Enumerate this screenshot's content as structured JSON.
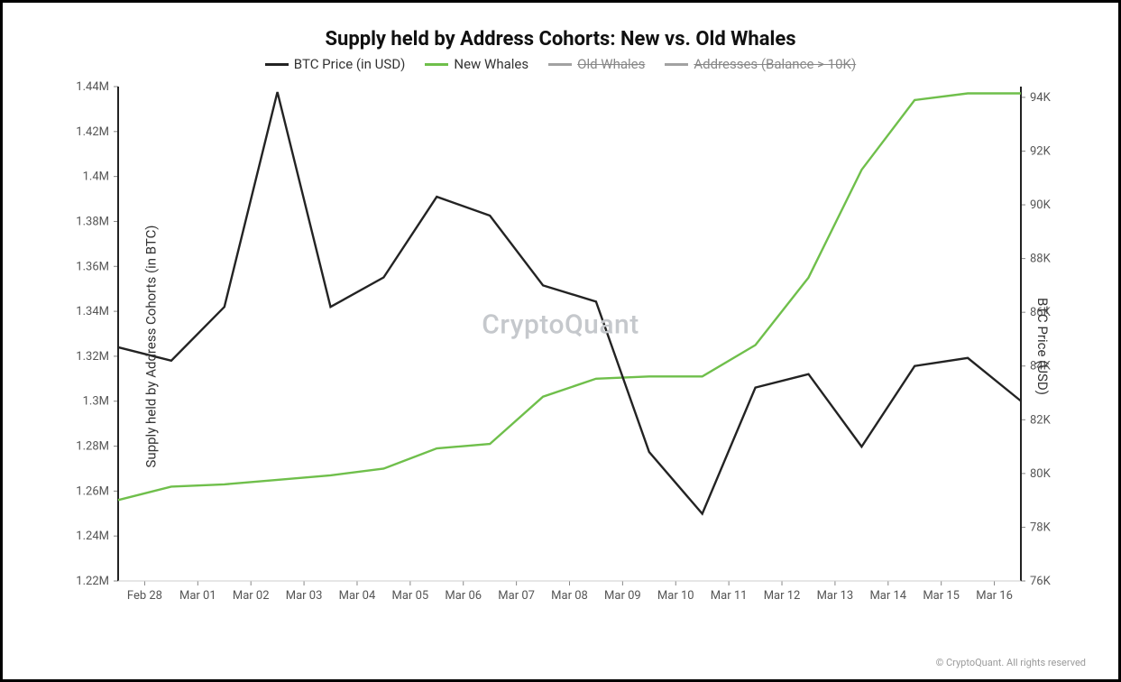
{
  "chart": {
    "type": "line",
    "title": "Supply held by Address Cohorts: New vs. Old Whales",
    "title_fontsize": 22,
    "watermark": "CryptoQuant",
    "copyright": "© CryptoQuant. All rights reserved",
    "background_color": "#ffffff",
    "frame_border_color": "#000000",
    "line_width": 2.4,
    "legend": [
      {
        "label": "BTC Price (in USD)",
        "color": "#232323",
        "active": true
      },
      {
        "label": "New Whales",
        "color": "#6fbf4b",
        "active": true
      },
      {
        "label": "Old Whales",
        "color": "#555555",
        "active": false
      },
      {
        "label": "Addresses (Balance > 10K)",
        "color": "#555555",
        "active": false
      }
    ],
    "x": {
      "labels": [
        "Feb 28",
        "Mar 01",
        "Mar 02",
        "Mar 03",
        "Mar 04",
        "Mar 05",
        "Mar 06",
        "Mar 07",
        "Mar 08",
        "Mar 09",
        "Mar 10",
        "Mar 11",
        "Mar 12",
        "Mar 13",
        "Mar 14",
        "Mar 15",
        "Mar 16"
      ],
      "tick_fontsize": 13,
      "tick_color": "#555555"
    },
    "y_left": {
      "title": "Supply held by Address Cohorts (in BTC)",
      "min": 1.22,
      "max": 1.44,
      "ticks": [
        1.22,
        1.24,
        1.26,
        1.28,
        1.3,
        1.32,
        1.34,
        1.36,
        1.38,
        1.4,
        1.42,
        1.44
      ],
      "tick_labels": [
        "1.22M",
        "1.24M",
        "1.26M",
        "1.28M",
        "1.3M",
        "1.32M",
        "1.34M",
        "1.36M",
        "1.38M",
        "1.4M",
        "1.42M",
        "1.44M"
      ],
      "axis_color": "#6fbf4b",
      "tick_fontsize": 13,
      "label_fontsize": 15
    },
    "y_right": {
      "title": "BTC Price (USD)",
      "min": 76,
      "max": 94.4,
      "ticks": [
        76,
        78,
        80,
        82,
        84,
        86,
        88,
        90,
        92,
        94
      ],
      "tick_labels": [
        "76K",
        "78K",
        "80K",
        "82K",
        "84K",
        "86K",
        "88K",
        "90K",
        "92K",
        "94K"
      ],
      "axis_color": "#232323",
      "tick_fontsize": 13,
      "label_fontsize": 15
    },
    "series": {
      "btc_price_usd_k": {
        "color": "#232323",
        "values": [
          84.7,
          84.2,
          86.2,
          94.2,
          86.2,
          87.3,
          90.3,
          89.6,
          87.0,
          86.4,
          80.8,
          78.5,
          83.2,
          83.7,
          81.0,
          84.0,
          84.3,
          82.7
        ]
      },
      "new_whales_m": {
        "color": "#6fbf4b",
        "values": [
          1.256,
          1.262,
          1.263,
          1.265,
          1.267,
          1.27,
          1.279,
          1.281,
          1.302,
          1.31,
          1.311,
          1.311,
          1.325,
          1.355,
          1.403,
          1.434,
          1.437,
          1.437
        ]
      }
    },
    "series_x_span": {
      "start": -0.5,
      "end": 16.5
    }
  }
}
